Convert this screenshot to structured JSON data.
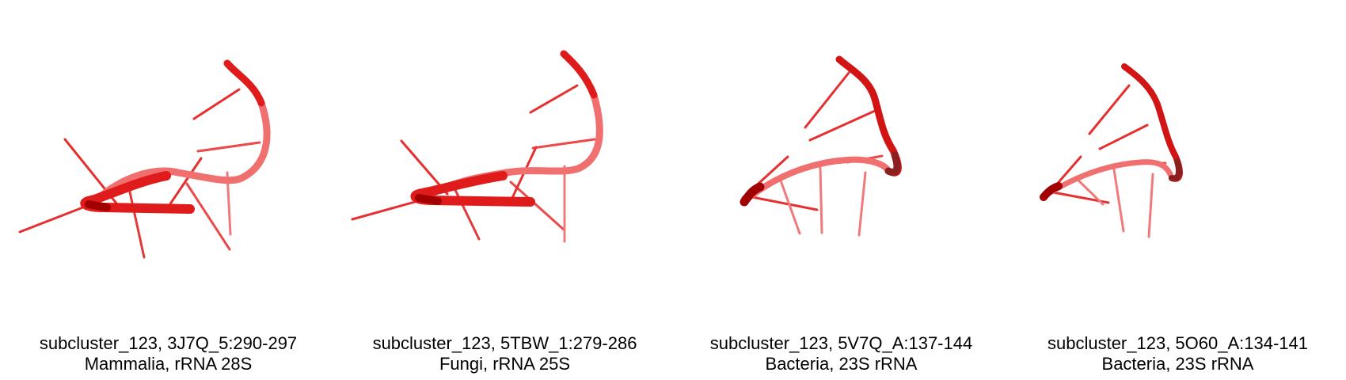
{
  "colors": {
    "backbone_front": "#e01b1b",
    "backbone_back": "#f07070",
    "backbone_dark": "#a00000",
    "stick": "#e63030",
    "stick_light": "#f07a7a",
    "text": "#000000",
    "background": "#ffffff"
  },
  "panels": [
    {
      "label_line1": "subcluster_123, 3J7Q_5:290-297",
      "label_line2": "Mammalia, rRNA 28S"
    },
    {
      "label_line1": "subcluster_123, 5TBW_1:279-286",
      "label_line2": "Fungi, rRNA 25S"
    },
    {
      "label_line1": "subcluster_123, 5V7Q_A:137-144",
      "label_line2": "Bacteria, 23S rRNA"
    },
    {
      "label_line1": "subcluster_123, 5O60_A:134-141",
      "label_line2": "Bacteria, 23S rRNA"
    }
  ]
}
